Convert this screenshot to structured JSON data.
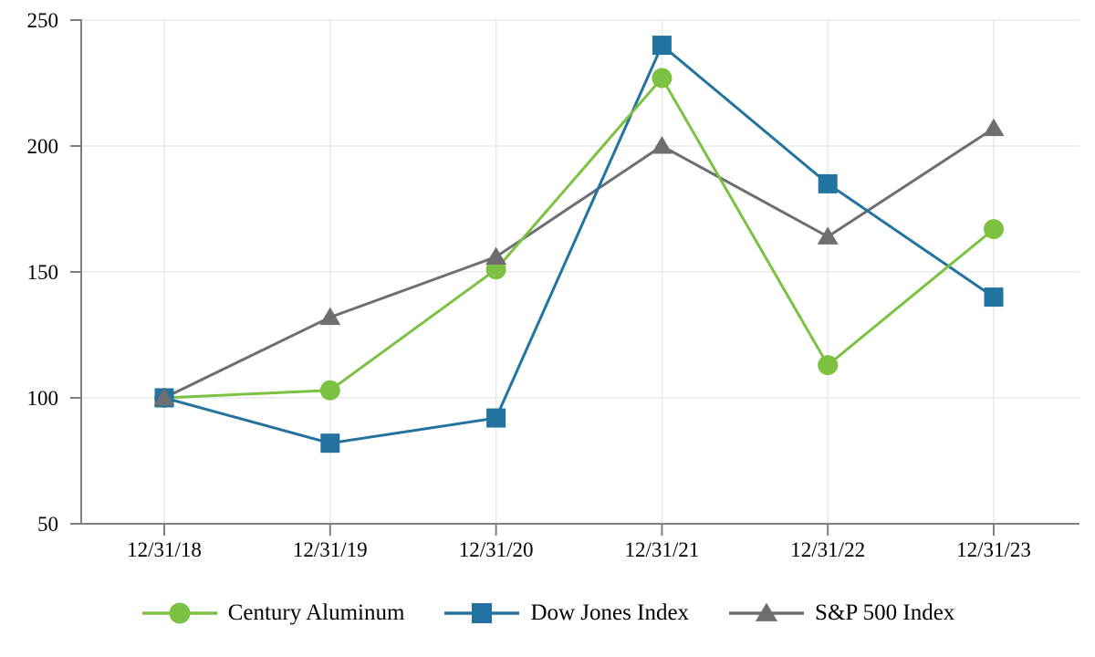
{
  "chart_data": {
    "type": "line",
    "title": "",
    "xlabel": "",
    "ylabel": "",
    "categories": [
      "12/31/18",
      "12/31/19",
      "12/31/20",
      "12/31/21",
      "12/31/22",
      "12/31/23"
    ],
    "series": [
      {
        "name": "Century Aluminum",
        "marker": "circle",
        "color": "#7CC142",
        "values": [
          100,
          103,
          151,
          227,
          113,
          167
        ]
      },
      {
        "name": "Dow Jones Index",
        "marker": "square",
        "color": "#2373A0",
        "values": [
          100,
          82,
          92,
          240,
          185,
          140
        ]
      },
      {
        "name": "S&P 500 Index",
        "marker": "triangle",
        "color": "#6D6E71",
        "values": [
          100,
          132,
          156,
          200,
          164,
          207
        ]
      }
    ],
    "ylim": [
      50,
      250
    ],
    "yticks": [
      50,
      100,
      150,
      200,
      250
    ],
    "grid": {
      "horizontal": true,
      "vertical": true,
      "color": "#E9E9E9"
    },
    "axis_color": "#7F7F7F",
    "text_color": "#000000",
    "legend_position": "bottom"
  }
}
